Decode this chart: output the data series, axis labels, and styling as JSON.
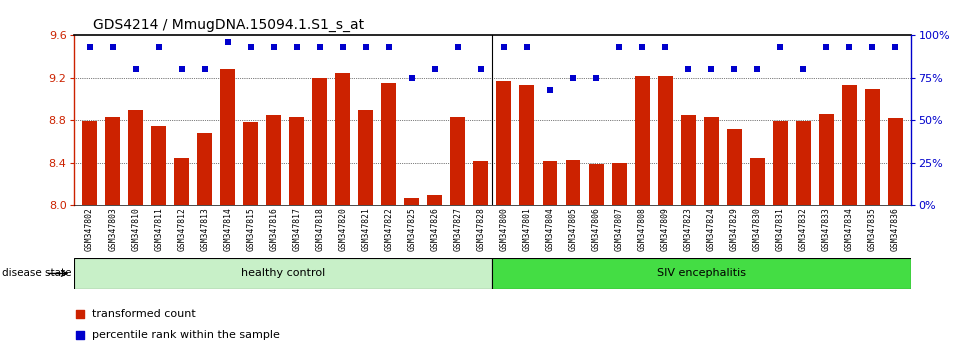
{
  "title": "GDS4214 / MmugDNA.15094.1.S1_s_at",
  "samples": [
    "GSM347802",
    "GSM347803",
    "GSM347810",
    "GSM347811",
    "GSM347812",
    "GSM347813",
    "GSM347814",
    "GSM347815",
    "GSM347816",
    "GSM347817",
    "GSM347818",
    "GSM347820",
    "GSM347821",
    "GSM347822",
    "GSM347825",
    "GSM347826",
    "GSM347827",
    "GSM347828",
    "GSM347800",
    "GSM347801",
    "GSM347804",
    "GSM347805",
    "GSM347806",
    "GSM347807",
    "GSM347808",
    "GSM347809",
    "GSM347823",
    "GSM347824",
    "GSM347829",
    "GSM347830",
    "GSM347831",
    "GSM347832",
    "GSM347833",
    "GSM347834",
    "GSM347835",
    "GSM347836"
  ],
  "bar_values": [
    8.79,
    8.83,
    8.9,
    8.75,
    8.45,
    8.68,
    9.28,
    8.78,
    8.85,
    8.83,
    9.2,
    9.25,
    8.9,
    9.15,
    8.07,
    8.1,
    8.83,
    8.42,
    9.17,
    9.13,
    8.42,
    8.43,
    8.39,
    8.4,
    9.22,
    9.22,
    8.85,
    8.83,
    8.72,
    8.45,
    8.79,
    8.79,
    8.86,
    9.13,
    9.1,
    8.82
  ],
  "percentile_values": [
    93,
    93,
    80,
    93,
    80,
    80,
    96,
    93,
    93,
    93,
    93,
    93,
    93,
    93,
    75,
    80,
    93,
    80,
    93,
    93,
    68,
    75,
    75,
    93,
    93,
    93,
    80,
    80,
    80,
    80,
    93,
    80,
    93,
    93,
    93,
    93
  ],
  "ylim_left": [
    8.0,
    9.6
  ],
  "ylim_right": [
    0,
    100
  ],
  "yticks_left": [
    8.0,
    8.4,
    8.8,
    9.2,
    9.6
  ],
  "yticks_right": [
    0,
    25,
    50,
    75,
    100
  ],
  "bar_color": "#CC2200",
  "dot_color": "#0000CC",
  "healthy_color": "#c8f0c8",
  "siv_color": "#44dd44",
  "healthy_group": "healthy control",
  "siv_group": "SIV encephalitis",
  "n_healthy": 18,
  "legend_bar_label": "transformed count",
  "legend_dot_label": "percentile rank within the sample",
  "background_color": "#ffffff",
  "title_fontsize": 10,
  "plot_bg": "#e8e8e8"
}
